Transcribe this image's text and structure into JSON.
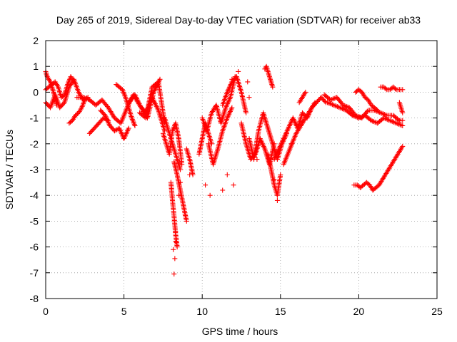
{
  "chart_data": {
    "type": "scatter",
    "title": "Day 265 of 2019, Sidereal Day-to-day VTEC variation (SDTVAR) for receiver ab33",
    "xlabel": "GPS time / hours",
    "ylabel": "SDTVAR / TECUs",
    "xlim": [
      0,
      25
    ],
    "ylim": [
      -8,
      2
    ],
    "xticks": [
      0,
      5,
      10,
      15,
      20,
      25
    ],
    "yticks": [
      -8,
      -7,
      -6,
      -5,
      -4,
      -3,
      -2,
      -1,
      0,
      1,
      2
    ],
    "grid": true,
    "marker": "+",
    "series": [
      {
        "name": "SDTVAR",
        "color": "#ff0000",
        "tracks": [
          {
            "x": [
              0.0,
              0.1,
              0.2,
              0.3,
              0.4,
              0.5,
              0.6,
              0.7
            ],
            "y": [
              0.8,
              0.6,
              0.5,
              0.4,
              0.2,
              0.0,
              -0.2,
              -0.5
            ]
          },
          {
            "x": [
              0.0,
              0.2,
              0.4,
              0.6,
              0.8,
              1.0,
              1.2,
              1.4,
              1.6,
              1.8
            ],
            "y": [
              0.1,
              0.2,
              0.3,
              0.4,
              0.2,
              -0.2,
              -0.1,
              0.3,
              0.6,
              0.4
            ]
          },
          {
            "x": [
              0.0,
              0.3,
              0.6,
              0.9,
              1.2,
              1.5,
              1.8,
              2.1,
              2.4,
              2.7
            ],
            "y": [
              -0.4,
              -0.6,
              -0.1,
              -0.6,
              -0.4,
              0.2,
              0.5,
              0.0,
              -0.3,
              -0.2
            ]
          },
          {
            "x": [
              1.5,
              1.7,
              1.9,
              2.1,
              2.3,
              2.5
            ],
            "y": [
              -1.2,
              -1.1,
              -0.9,
              -0.8,
              -0.6,
              -0.3
            ]
          },
          {
            "x": [
              2.0,
              2.4,
              2.8,
              3.2,
              3.6,
              4.0,
              4.4,
              4.8,
              5.2,
              5.6,
              6.0,
              6.4,
              6.8,
              7.2,
              7.6
            ],
            "y": [
              -0.2,
              -0.2,
              -0.3,
              -0.5,
              -0.3,
              -0.6,
              -1.0,
              -1.2,
              -0.6,
              -0.1,
              -0.5,
              -0.8,
              -0.2,
              -0.7,
              -1.5
            ]
          },
          {
            "x": [
              2.8,
              3.1,
              3.4,
              3.7,
              4.0
            ],
            "y": [
              -1.6,
              -1.4,
              -1.2,
              -1.0,
              -1.1
            ]
          },
          {
            "x": [
              3.5,
              3.8,
              4.1,
              4.4,
              4.7,
              5.0,
              5.3
            ],
            "y": [
              -0.7,
              -0.9,
              -1.3,
              -1.5,
              -1.4,
              -1.8,
              -1.4
            ]
          },
          {
            "x": [
              4.5,
              4.7,
              4.9,
              5.1,
              5.3,
              5.5,
              5.7
            ],
            "y": [
              0.3,
              0.2,
              0.1,
              -0.2,
              -0.6,
              -1.0,
              -1.3
            ]
          },
          {
            "x": [
              5.3,
              5.7,
              6.1,
              6.5,
              6.9,
              7.3
            ],
            "y": [
              -0.4,
              -0.1,
              -0.6,
              -1.0,
              0.0,
              0.5
            ]
          },
          {
            "x": [
              6.0,
              6.4,
              6.8,
              7.2,
              7.6
            ],
            "y": [
              -0.8,
              -1.0,
              0.2,
              0.4,
              -1.2
            ]
          },
          {
            "x": [
              7.6,
              7.8,
              8.0,
              8.2,
              8.4,
              8.6
            ],
            "y": [
              -1.0,
              -1.4,
              -1.8,
              -2.2,
              -2.6,
              -3.0
            ]
          },
          {
            "x": [
              7.5,
              7.7,
              7.9,
              8.1,
              8.3,
              8.5,
              8.7
            ],
            "y": [
              -1.6,
              -2.0,
              -2.4,
              -1.5,
              -1.2,
              -1.8,
              -2.8
            ]
          },
          {
            "x": [
              8.2,
              8.4,
              8.6,
              8.8,
              9.0
            ],
            "y": [
              -2.7,
              -3.2,
              -3.8,
              -4.4,
              -5.0
            ]
          },
          {
            "x": [
              8.0,
              8.1,
              8.2,
              8.3,
              8.4
            ],
            "y": [
              -3.5,
              -4.2,
              -4.8,
              -5.5,
              -6.0
            ]
          },
          {
            "x": [
              9.0,
              9.2,
              9.4
            ],
            "y": [
              -2.2,
              -2.6,
              -3.2
            ]
          },
          {
            "x": [
              9.8,
              10.0,
              10.2,
              10.4,
              10.6
            ],
            "y": [
              -2.4,
              -1.8,
              -1.2,
              -1.6,
              -2.0
            ]
          },
          {
            "x": [
              10.0,
              10.3,
              10.6,
              10.9,
              11.2,
              11.5,
              11.8,
              12.1
            ],
            "y": [
              -1.0,
              -1.5,
              -0.8,
              -0.5,
              -1.2,
              -0.6,
              -0.2,
              0.6
            ]
          },
          {
            "x": [
              10.4,
              10.7,
              11.0,
              11.3,
              11.6,
              11.9
            ],
            "y": [
              -2.0,
              -2.8,
              -2.2,
              -1.5,
              -1.0,
              -0.6
            ]
          },
          {
            "x": [
              11.3,
              11.6,
              11.9,
              12.2,
              12.5,
              12.8
            ],
            "y": [
              -0.5,
              0.0,
              0.4,
              0.6,
              0.0,
              -0.8
            ]
          },
          {
            "x": [
              12.5,
              12.8,
              13.1,
              13.4,
              13.7,
              14.0,
              14.3,
              14.6
            ],
            "y": [
              -1.2,
              -2.0,
              -2.6,
              -2.4,
              -1.8,
              -2.2,
              -2.8,
              -2.0
            ]
          },
          {
            "x": [
              13.0,
              13.3,
              13.6,
              13.9,
              14.2,
              14.5,
              14.8,
              15.1,
              15.4
            ],
            "y": [
              -1.8,
              -2.6,
              -1.5,
              -0.8,
              -1.4,
              -2.0,
              -2.6,
              -2.0,
              -1.6
            ]
          },
          {
            "x": [
              14.0,
              14.1,
              14.2,
              14.3,
              14.4,
              14.5
            ],
            "y": [
              0.9,
              1.0,
              0.8,
              0.6,
              0.4,
              0.2
            ]
          },
          {
            "x": [
              14.2,
              14.4,
              14.6,
              14.8,
              15.0
            ],
            "y": [
              -2.4,
              -3.0,
              -3.6,
              -4.0,
              -3.2
            ]
          },
          {
            "x": [
              14.6,
              14.9,
              15.2,
              15.5,
              15.8,
              16.1,
              16.4,
              16.7,
              17.0,
              17.3,
              17.6,
              17.9
            ],
            "y": [
              -2.6,
              -2.2,
              -1.8,
              -1.4,
              -1.0,
              -1.4,
              -0.8,
              -1.0,
              -0.6,
              -0.4,
              -0.2,
              -0.4
            ]
          },
          {
            "x": [
              15.2,
              15.6,
              16.0,
              16.4,
              16.8,
              17.2
            ],
            "y": [
              -2.8,
              -2.2,
              -1.6,
              -1.2,
              -0.8,
              -0.4
            ]
          },
          {
            "x": [
              16.2,
              16.4,
              16.6
            ],
            "y": [
              -0.4,
              -0.2,
              0.0
            ]
          },
          {
            "x": [
              17.8,
              18.2,
              18.6,
              19.0,
              19.4,
              19.8,
              20.2,
              20.6,
              21.0,
              21.4,
              21.8,
              22.2,
              22.6,
              22.8
            ],
            "y": [
              -0.1,
              -0.3,
              -0.2,
              -0.5,
              -0.6,
              -0.9,
              -1.0,
              -0.7,
              -0.7,
              -0.8,
              -0.9,
              -0.9,
              -1.1,
              -1.1
            ]
          },
          {
            "x": [
              18.0,
              18.4,
              18.8,
              19.2,
              19.6,
              20.0,
              20.4,
              20.8,
              21.2,
              21.6,
              22.0,
              22.4,
              22.8
            ],
            "y": [
              -0.4,
              -0.5,
              -0.6,
              -0.7,
              -0.9,
              -1.0,
              -0.9,
              -1.1,
              -1.2,
              -1.0,
              -1.1,
              -1.2,
              -1.3
            ]
          },
          {
            "x": [
              19.8,
              20.0,
              20.2,
              20.4,
              20.6,
              20.8,
              21.0,
              21.2
            ],
            "y": [
              0.0,
              0.1,
              0.0,
              -0.2,
              -0.3,
              -0.5,
              -0.6,
              -0.7
            ]
          },
          {
            "x": [
              21.4,
              21.6,
              21.8,
              22.0,
              22.2,
              22.4,
              22.6,
              22.8
            ],
            "y": [
              0.2,
              0.2,
              0.1,
              0.1,
              0.2,
              0.1,
              0.1,
              0.1
            ]
          },
          {
            "x": [
              19.7,
              19.9,
              20.1,
              20.3,
              20.5,
              20.7,
              20.9,
              21.1,
              21.3,
              21.5,
              21.7,
              21.9,
              22.1,
              22.3,
              22.5,
              22.7,
              22.8
            ],
            "y": [
              -3.6,
              -3.6,
              -3.7,
              -3.6,
              -3.5,
              -3.6,
              -3.8,
              -3.7,
              -3.6,
              -3.4,
              -3.2,
              -3.0,
              -2.8,
              -2.6,
              -2.4,
              -2.2,
              -2.1
            ]
          },
          {
            "x": [
              22.6,
              22.8
            ],
            "y": [
              -0.4,
              -0.8
            ]
          }
        ],
        "isolated": {
          "x": [
            8.2,
            8.25,
            8.15,
            8.3,
            8.3,
            8.5,
            8.6,
            9.2,
            11.3,
            12.0,
            11.6,
            13.0,
            12.9,
            10.2,
            10.5,
            14.8,
            14.6,
            13.5,
            12.3,
            11.9,
            15.7,
            7.0
          ],
          "y": [
            -7.05,
            -6.45,
            -6.1,
            -5.8,
            -5.4,
            -4.0,
            -3.5,
            -3.2,
            -3.8,
            -3.6,
            -3.2,
            -0.2,
            0.4,
            -3.6,
            -4.0,
            -4.2,
            -3.4,
            -2.6,
            0.8,
            0.5,
            -2.0,
            0.2
          ]
        }
      }
    ]
  }
}
